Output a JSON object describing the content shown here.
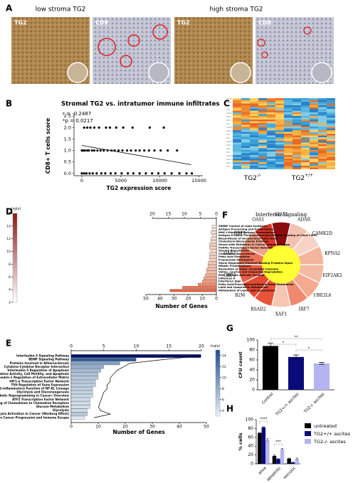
{
  "panel_labels": [
    "A",
    "B",
    "C",
    "D",
    "E",
    "F",
    "G",
    "H"
  ],
  "panel_a": {
    "groups": [
      "low stroma TG2",
      "high stroma TG2"
    ],
    "images": [
      "TG2",
      "CD8",
      "TG2",
      "CD8"
    ]
  },
  "panel_c": {
    "columns": [
      {
        "base": "TG2",
        "sup": "-/-"
      },
      {
        "base": "TG2",
        "sup": "+/+"
      }
    ]
  },
  "panel_f": {
    "title": "Interferon Signaling",
    "genes": [
      "STAT1",
      "ADAR",
      "CAMK2D",
      "KPNA2",
      "EIF2AK2",
      "UBE2L6",
      "IRF7",
      "XAF1",
      "RSAD2",
      "B2M",
      "GBP3",
      "OAS2",
      "GBP2",
      "OAS1"
    ],
    "colors": [
      "#8b0d0d",
      "#f4c2b0",
      "#f8d3c5",
      "#f3b59c",
      "#f4bba4",
      "#f5a98e",
      "#ef8a6e",
      "#f6c6b2",
      "#e8533a",
      "#e44a33",
      "#e65c43",
      "#ec7458",
      "#f2a48a",
      "#d8392b"
    ],
    "center_color": "#ffff33"
  },
  "chart_data": [
    {
      "type": "scatter",
      "title": "Stromal TG2 vs. intratumor immune infiltrates",
      "annotations": [
        "r = -0.2487",
        "*p = 0.0217"
      ],
      "x_label": "TG2 expression score",
      "y_label": "CD8+ T cells score",
      "x": [
        300,
        700,
        1100,
        1600,
        2200,
        3100,
        3600,
        4400,
        5300,
        6500,
        8700,
        10500,
        0,
        200,
        400,
        700,
        900,
        1300,
        1600,
        2000,
        2400,
        2800,
        3300,
        3800,
        4200,
        4700,
        5200,
        5800,
        6300,
        6900,
        7400,
        8000,
        8600,
        9300,
        10100,
        11000,
        12200,
        0,
        300,
        600,
        1000,
        1400,
        1900,
        2500,
        3000,
        3700,
        4300,
        5100,
        5900,
        6600,
        7400,
        8200,
        9000,
        9800,
        10600,
        11500,
        12500,
        13400,
        14100
      ],
      "y": [
        2,
        2,
        2,
        2,
        2,
        2,
        2,
        2,
        2,
        2,
        2,
        2,
        1,
        1,
        1,
        1,
        1,
        1,
        1,
        1,
        1,
        1,
        1,
        1,
        1,
        1,
        1,
        1,
        1,
        1,
        1,
        1,
        1,
        1,
        1,
        1,
        1,
        0,
        0,
        0,
        0,
        0,
        0,
        0,
        0,
        0,
        0,
        0,
        0,
        0,
        0,
        0,
        0,
        0,
        0,
        0,
        0,
        0,
        0
      ],
      "color": "#000000",
      "trend": {
        "x": [
          0,
          14000
        ],
        "y": [
          1.22,
          0.38
        ]
      },
      "xlim": [
        -1000,
        15500
      ],
      "ylim": [
        -0.1,
        2.6
      ],
      "xticks": [
        0,
        5000,
        10000,
        15000
      ],
      "yticks": [
        {
          "value": 0,
          "label": "0.0"
        },
        {
          "value": 0.5,
          "label": "0.5"
        },
        {
          "value": 1,
          "label": "1.0"
        },
        {
          "value": 1.5,
          "label": "1.5"
        },
        {
          "value": 2,
          "label": "2.0"
        },
        {
          "value": 2.5,
          "label": "2.5"
        }
      ]
    },
    {
      "type": "hbar",
      "x_reversed": true,
      "categories": [
        "SREBP Control of Lipid Synthesis",
        "Antigen Processing and Presentation",
        "MHC-I-Mediated Antigen Presentation",
        "Antigen Present: Folding/Assembly/Peptide Loading of Class I MHC",
        "Biosynthesis of Unsaturated Fatty Acids",
        "Cholesterol Biosynthesis Pathway",
        "Genes with Mutations in Cancer Immune Escape",
        "FOXM1 Transcription Factor Network",
        "Steroid Biosynthesis",
        "Cholesterol Biosynthesis",
        "Fatty Acid Elongation",
        "Propanoate Metabolism",
        "Sterol Regulatory Element-Binding Proteins Signa",
        "Mitotic Prometaphase",
        "Resolution of Sister Chromatid Cohesion",
        "Valine, Leucine and Isoleucine Degradation",
        "RHO GTPases Activate Formins",
        "Influenza A",
        "Interferon Sign",
        "Fatty Acid/Triacylglycerol/Ketone Body Metabolism",
        "Lipid and Lipoprotein Metabolism",
        "Metabolism of Lipids and Lipoproteins"
      ],
      "values": [
        3,
        3,
        4,
        3,
        4,
        4,
        5,
        5,
        4,
        5,
        5,
        5,
        6,
        6,
        7,
        7,
        8,
        9,
        10,
        13,
        24,
        33
      ],
      "colors": [
        "#fde6dc",
        "#fde6dc",
        "#fcdccf",
        "#fde6dc",
        "#fcdccf",
        "#fcdccf",
        "#fbd2c2",
        "#fbd2c2",
        "#fcdccf",
        "#fbd2c2",
        "#fbd2c2",
        "#fbd2c2",
        "#fac6b3",
        "#fac6b3",
        "#f9bba5",
        "#f9bba5",
        "#f8b097",
        "#f7a589",
        "#f59a7b",
        "#f28c6c",
        "#ec7556",
        "#e8603c"
      ],
      "x_label": "Number of Genes",
      "xlim": [
        0,
        50
      ],
      "xticks": [
        50,
        40,
        30,
        20,
        10,
        0
      ],
      "x2lim": [
        0,
        20
      ],
      "x2ticks": [
        20,
        15,
        10,
        5,
        0
      ],
      "colorbar": {
        "label": "-log(p)",
        "lim": [
          2,
          16
        ],
        "ticks": [
          2,
          4,
          6,
          8,
          10,
          12,
          14,
          16
        ],
        "colors": [
          "#ffffff",
          "#8b1a1a"
        ]
      }
    },
    {
      "type": "hbar",
      "x_reversed": false,
      "categories": [
        "Interleukin-3 Signaling Pathway",
        "BDNF Signaling Pathway",
        "Proteins Involved in Atherosclerosis",
        "Cytokine-Cytokine Receptor Interaction",
        "Interleukin-5 Regulation of Apoptosis",
        "TNF-α Effects on Cytokine Activity, Cell Motility, and Apoptosis",
        "Interleukin-1 Regulation of Extracellular Matrix",
        "HIF1-α Transcription Factor Network",
        "TSH Regulation of Gene Expression",
        "Anti-inflammatory Function of NF-KL Lineage",
        "Glycolysis and Gluconeogenesis",
        "Metabolic Reprogramming in Cancer: Overview",
        "ATF2 Transcription Factor Network",
        "Binding of Chemokines to Chemokine Receptors",
        "Glucose Metabolism",
        "Glycolysis",
        "Glycolysis Activation in Cancer (Warburg Effect)",
        "Tumor Infiltrating MFs in Cancer Progression and Immune Escape"
      ],
      "values": [
        48,
        24,
        18,
        12,
        11,
        10,
        10,
        9,
        9,
        8,
        8,
        8,
        7,
        7,
        7,
        6,
        6,
        5
      ],
      "line": {
        "values": [
          19.5,
          14,
          9,
          8,
          7,
          6.5,
          6,
          6,
          5.5,
          5.5,
          5,
          4.8,
          4.6,
          4.4,
          4.2,
          4.5,
          6,
          3.5
        ],
        "color": "#000000"
      },
      "x_label": "Number of Genes",
      "xlim": [
        0,
        50
      ],
      "xticks": [
        0,
        10,
        20,
        30,
        40,
        50
      ],
      "x2lim": [
        0,
        20
      ],
      "x2ticks": [
        0,
        5,
        10,
        15,
        20
      ],
      "colorbar": {
        "label": "-log(p)",
        "lim": [
          3,
          15
        ],
        "ticks": [
          4,
          6,
          8,
          10,
          12,
          14
        ],
        "colors": [
          "#e8f0f8",
          "#1f4e8c"
        ]
      }
    },
    {
      "type": "bar",
      "categories": [
        "Control",
        "TG2+/+ ascites",
        "TG2-/- ascites"
      ],
      "values": [
        88,
        66,
        53
      ],
      "errors": [
        6,
        4,
        2
      ],
      "colors": [
        "#000000",
        "#0a0a7a",
        "#b4b4f0"
      ],
      "y_label": "CFU count",
      "ylim": [
        0,
        100
      ],
      "yticks": [
        0,
        20,
        40,
        60,
        80,
        100
      ],
      "annotations": [
        "**",
        "*",
        "*"
      ]
    },
    {
      "type": "grouped_bar",
      "categories": [
        "alive",
        "apoptotic",
        "necrotic"
      ],
      "series": [
        {
          "name": "untreated",
          "color": "#000000",
          "values": [
            70,
            18,
            12
          ],
          "errors": [
            1,
            2,
            1
          ]
        },
        {
          "name": "TG2+/+ ascites",
          "color": "#0a0a7a",
          "values": [
            83,
            11,
            3
          ],
          "errors": [
            1,
            1,
            1
          ]
        },
        {
          "name": "TG2-/- ascites",
          "color": "#b4b4f0",
          "values": [
            54,
            33,
            11
          ],
          "errors": [
            3,
            2,
            2
          ]
        }
      ],
      "y_label": "% cells",
      "ylim": [
        0,
        100
      ],
      "yticks": [
        0,
        20,
        40,
        60,
        80,
        100
      ],
      "annotations": [
        "****",
        "***"
      ]
    }
  ]
}
